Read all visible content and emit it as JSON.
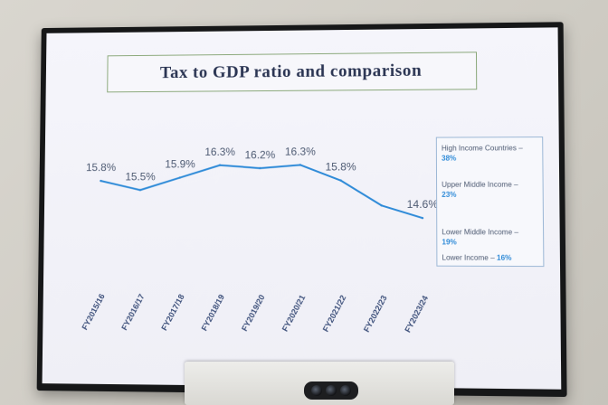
{
  "chart_data": {
    "type": "line",
    "title": "Tax to GDP ratio and comparison",
    "xlabel": "",
    "ylabel": "",
    "categories": [
      "FY2015/16",
      "FY2016/17",
      "FY2017/18",
      "FY2018/19",
      "FY2019/20",
      "FY2020/21",
      "FY2021/22",
      "FY2022/23",
      "FY2023/24"
    ],
    "series": [
      {
        "values": [
          15.8,
          15.5,
          15.9,
          16.3,
          16.2,
          16.3,
          15.8,
          15.0,
          14.6
        ],
        "data_labels": [
          "15.8%",
          "15.5%",
          "15.9%",
          "16.3%",
          "16.2%",
          "16.3%",
          "15.8%",
          "",
          "14.6%"
        ]
      }
    ],
    "ylim": [
      14.4,
      16.6
    ],
    "grid": false,
    "line_color": "#2f8bd8"
  },
  "comparison": [
    {
      "label": "High Income Countries –",
      "value": "38%"
    },
    {
      "label": "Upper Middle Income –",
      "value": "23%"
    },
    {
      "label": "Lower Middle Income –",
      "value": "19%"
    },
    {
      "label": "Lower Income –",
      "value": "16%"
    }
  ]
}
